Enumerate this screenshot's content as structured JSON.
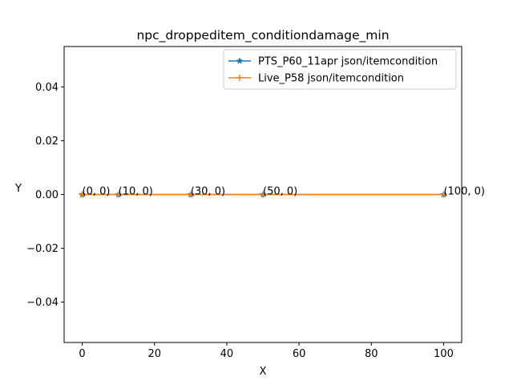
{
  "chart_data": {
    "type": "line",
    "title": "npc_droppeditem_conditiondamage_min",
    "xlabel": "X",
    "ylabel": "Y",
    "xlim": [
      -5,
      105
    ],
    "ylim": [
      -0.055,
      0.055
    ],
    "x_ticks": [
      0,
      20,
      40,
      60,
      80,
      100
    ],
    "x_tick_labels": [
      "0",
      "20",
      "40",
      "60",
      "80",
      "100"
    ],
    "y_ticks": [
      -0.04,
      -0.02,
      0.0,
      0.02,
      0.04
    ],
    "y_tick_labels": [
      "−0.04",
      "−0.02",
      "0.00",
      "0.02",
      "0.04"
    ],
    "grid": false,
    "legend_position": "top-right",
    "series": [
      {
        "name": "PTS_P60_11apr json/itemcondition",
        "color": "#1f77b4",
        "marker": "star",
        "x": [
          0,
          10,
          30,
          50,
          100
        ],
        "y": [
          0,
          0,
          0,
          0,
          0
        ]
      },
      {
        "name": "Live_P58 json/itemcondition",
        "color": "#ff7f0e",
        "marker": "plus",
        "x": [
          0,
          10,
          30,
          50,
          100
        ],
        "y": [
          0,
          0,
          0,
          0,
          0
        ]
      }
    ],
    "annotations": [
      {
        "x": 0,
        "y": 0,
        "text": "(0, 0)"
      },
      {
        "x": 10,
        "y": 0,
        "text": "(10, 0)"
      },
      {
        "x": 30,
        "y": 0,
        "text": "(30, 0)"
      },
      {
        "x": 50,
        "y": 0,
        "text": "(50, 0)"
      },
      {
        "x": 100,
        "y": 0,
        "text": "(100, 0)"
      }
    ]
  }
}
